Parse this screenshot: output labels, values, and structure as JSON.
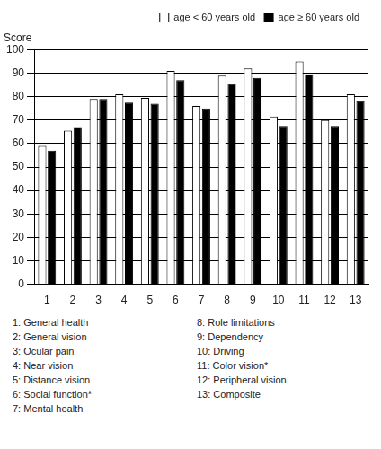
{
  "chart_data": {
    "type": "bar",
    "ylabel": "Score",
    "categories": [
      "1",
      "2",
      "3",
      "4",
      "5",
      "6",
      "7",
      "8",
      "9",
      "10",
      "11",
      "12",
      "13"
    ],
    "series": [
      {
        "name": "age < 60 years old",
        "color": "#ffffff",
        "values": [
          59,
          65.5,
          79,
          81,
          79.5,
          91,
          76,
          89,
          92,
          71.5,
          95,
          70,
          81
        ]
      },
      {
        "name": "age ≥ 60 years old",
        "color": "#000000",
        "values": [
          57,
          67,
          79,
          77.5,
          77,
          87,
          75,
          85.5,
          88,
          67.5,
          89.5,
          67.5,
          78
        ]
      }
    ],
    "ylim": [
      0,
      100
    ],
    "yticks": [
      0,
      10,
      20,
      30,
      40,
      50,
      60,
      70,
      80,
      90,
      100
    ],
    "grid": true,
    "legend": "top right",
    "annotations": [
      "1: General health",
      "2: General vision",
      "3: Ocular pain",
      "4: Near vision",
      "5: Distance vision",
      "6: Social function*",
      "7: Mental health",
      "8: Role limitations",
      "9: Dependency",
      "10: Driving",
      "11: Color vision*",
      "12: Peripheral vision",
      "13: Composite"
    ]
  }
}
